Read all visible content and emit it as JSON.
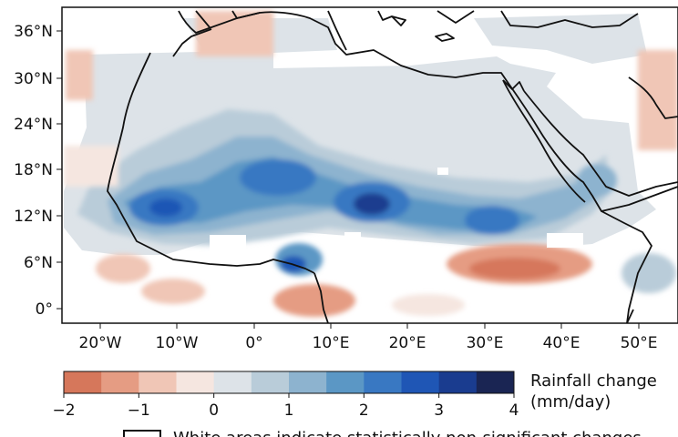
{
  "map": {
    "lat_ticks": [
      "36°N",
      "30°N",
      "24°N",
      "18°N",
      "12°N",
      "6°N",
      "0°"
    ],
    "lon_ticks": [
      "20°W",
      "10°W",
      "0°",
      "10°E",
      "20°E",
      "30°E",
      "40°E",
      "50°E"
    ]
  },
  "colorbar": {
    "title_line1": "Rainfall change",
    "title_line2": "(mm/day)",
    "ticks": [
      "−2",
      "−1",
      "0",
      "1",
      "2",
      "3",
      "4"
    ],
    "colors": [
      "#d6775b",
      "#e59c83",
      "#f0c6b6",
      "#f5e6e0",
      "#dde3e8",
      "#b9ccd9",
      "#8db3cf",
      "#5b97c5",
      "#3978c2",
      "#1f56b5",
      "#1a3c8f",
      "#1a2553"
    ]
  },
  "legend": {
    "text": "White areas indicate statistically non-significant changes"
  }
}
